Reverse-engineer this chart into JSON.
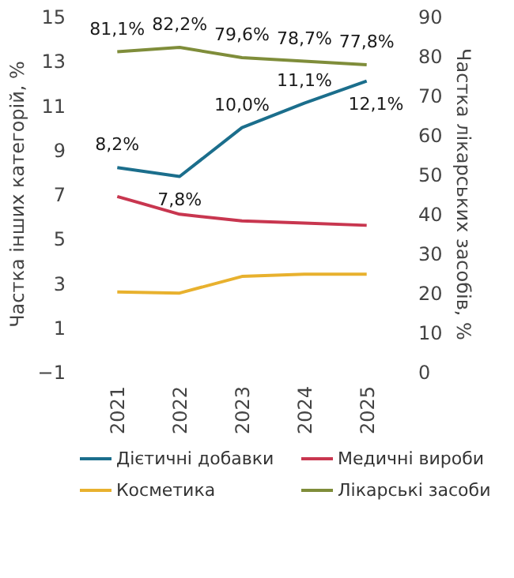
{
  "chart_data": {
    "type": "line",
    "ylabel": "Частка інших категорій, %",
    "y2label": "Частка лікарських засобів, %",
    "categories": [
      "2021",
      "2022",
      "2023",
      "2024",
      "2025"
    ],
    "ylim": [
      -1,
      15
    ],
    "yticks": [
      {
        "value": -1,
        "label": "−1"
      },
      1,
      3,
      5,
      7,
      9,
      11,
      13,
      15
    ],
    "y2lim": [
      0,
      90
    ],
    "y2ticks": [
      0,
      10,
      20,
      30,
      40,
      50,
      60,
      70,
      80,
      90
    ],
    "grid": false,
    "legend": "bottom",
    "marker": "none",
    "line_style": "solid",
    "series": [
      {
        "name": "Дієтичні добавки",
        "color": "#1b6e8c",
        "values": [
          8.2,
          7.8,
          10.0,
          11.1,
          12.1
        ],
        "value_labels": [
          "8,2%",
          "7,8%",
          "10,0%",
          "11,1%",
          "12,1%"
        ]
      },
      {
        "name": "Медичні вироби",
        "color": "#c8364f",
        "values": [
          6.9,
          6.1,
          5.8,
          5.7,
          5.6
        ]
      },
      {
        "name": "Косметика",
        "color": "#e8b12e",
        "values": [
          2.6,
          2.55,
          3.3,
          3.4,
          3.4
        ]
      },
      {
        "name": "Лікарські засоби",
        "color": "#7f8d3a",
        "axis": "y2",
        "values": [
          81.1,
          82.2,
          79.6,
          78.7,
          77.8
        ],
        "value_labels": [
          "81,1%",
          "82,2%",
          "79,6%",
          "78,7%",
          "77,8%"
        ]
      }
    ]
  }
}
